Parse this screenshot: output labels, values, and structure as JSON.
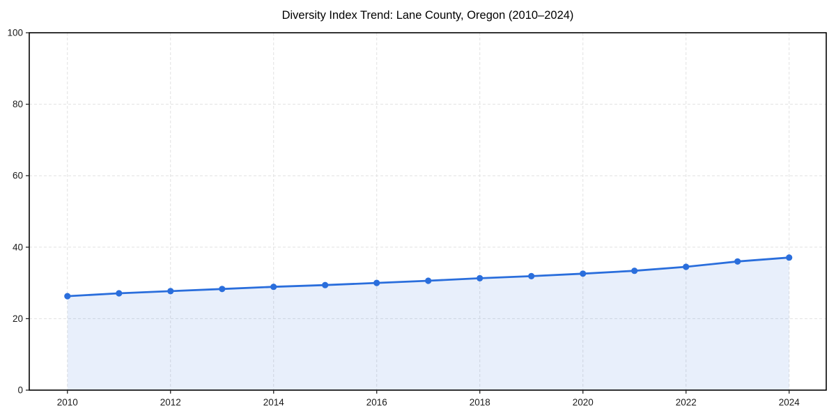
{
  "chart_data": {
    "type": "line",
    "title": "Diversity Index Trend: Lane County, Oregon (2010–2024)",
    "x": [
      2010,
      2011,
      2012,
      2013,
      2014,
      2015,
      2016,
      2017,
      2018,
      2019,
      2020,
      2021,
      2022,
      2023,
      2024
    ],
    "series": [
      {
        "name": "Diversity Index",
        "values": [
          26.3,
          27.1,
          27.7,
          28.3,
          28.9,
          29.4,
          30.0,
          30.6,
          31.3,
          31.9,
          32.6,
          33.4,
          34.5,
          36.0,
          37.1
        ]
      }
    ],
    "xlabel": "",
    "ylabel": "",
    "xlim": [
      2009.26,
      2024.72
    ],
    "ylim": [
      0,
      100
    ],
    "xticks": [
      2010,
      2012,
      2014,
      2016,
      2018,
      2020,
      2022,
      2024
    ],
    "yticks": [
      0,
      20,
      40,
      60,
      80,
      100
    ],
    "grid": "dashed",
    "legend_position": "none",
    "marker": "circle",
    "area_under_line": true,
    "colors": {
      "line": "#2a6edc",
      "marker": "#2a6edc",
      "area_fill": "rgba(42, 110, 220, 0.11)",
      "grid": "#e1e1e1",
      "spine": "#000000",
      "tick": "#222222",
      "tick_label": "#1a1a1a",
      "title": "#000000",
      "background": "#ffffff"
    }
  }
}
